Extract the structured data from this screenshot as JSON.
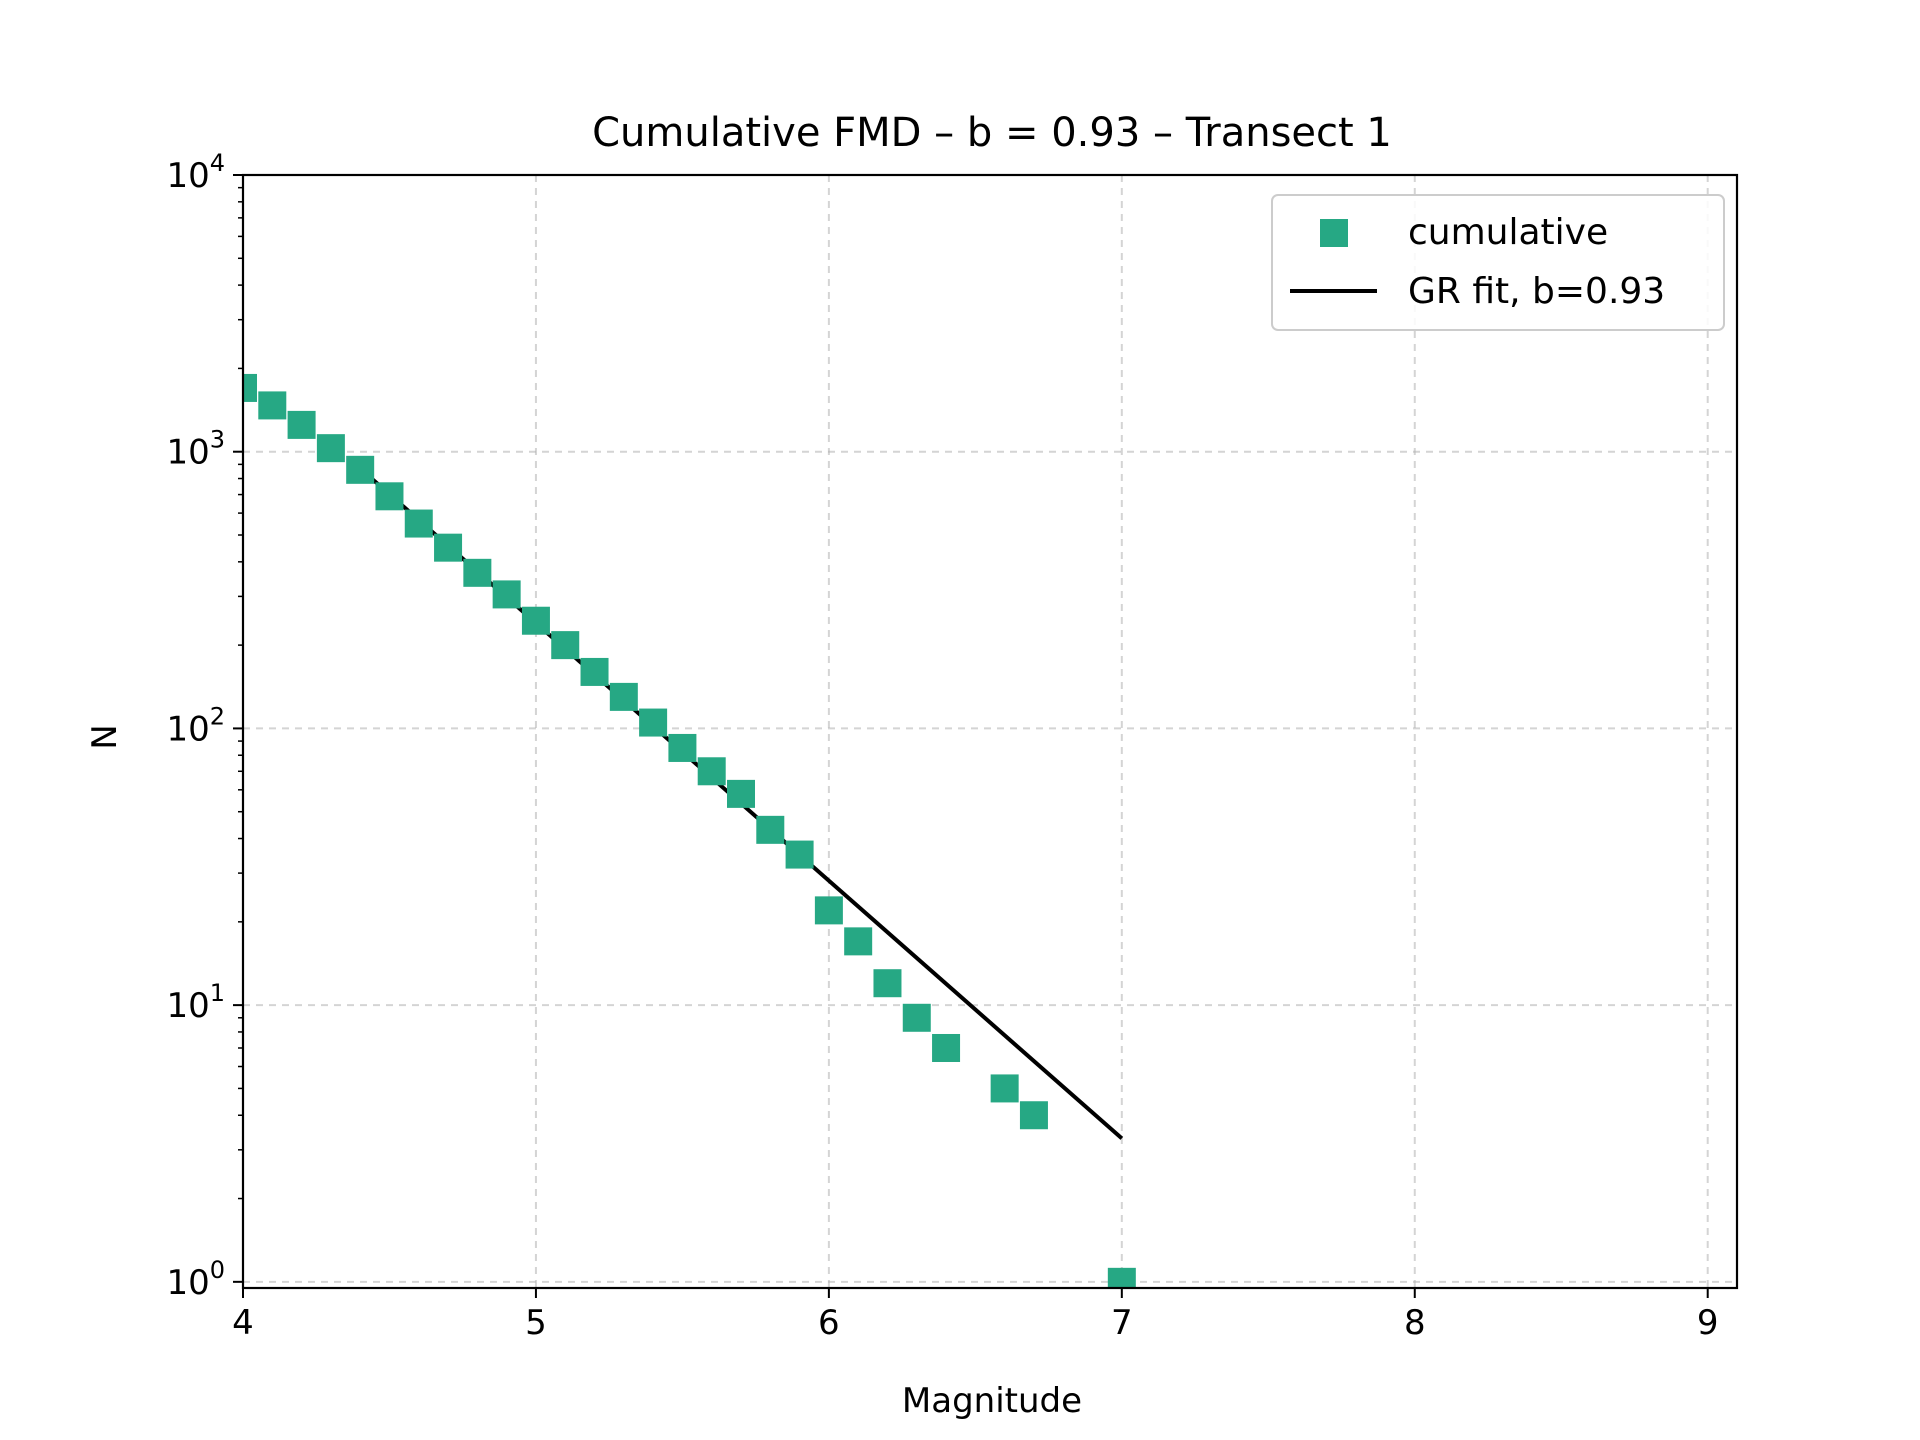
{
  "chart_data": {
    "type": "scatter",
    "title": "Cumulative FMD – b = 0.93 – Transect 1",
    "xlabel": "Magnitude",
    "ylabel": "N",
    "xlim": [
      4,
      9.1
    ],
    "ylim": [
      0.95,
      10000
    ],
    "yscale": "log",
    "grid": true,
    "legend_position": "top-right",
    "x_ticks": [
      "4",
      "5",
      "6",
      "7",
      "8",
      "9"
    ],
    "y_ticks": [
      {
        "base": "10",
        "exp": "0",
        "value": 1
      },
      {
        "base": "10",
        "exp": "1",
        "value": 10
      },
      {
        "base": "10",
        "exp": "2",
        "value": 100
      },
      {
        "base": "10",
        "exp": "3",
        "value": 1000
      },
      {
        "base": "10",
        "exp": "4",
        "value": 10000
      }
    ],
    "series": [
      {
        "name": "cumulative",
        "kind": "scatter",
        "marker": "square",
        "color": "#26a884",
        "points": [
          {
            "x": 4.0,
            "y": 1700
          },
          {
            "x": 4.1,
            "y": 1470
          },
          {
            "x": 4.2,
            "y": 1250
          },
          {
            "x": 4.3,
            "y": 1030
          },
          {
            "x": 4.4,
            "y": 860
          },
          {
            "x": 4.5,
            "y": 690
          },
          {
            "x": 4.6,
            "y": 550
          },
          {
            "x": 4.7,
            "y": 450
          },
          {
            "x": 4.8,
            "y": 365
          },
          {
            "x": 4.9,
            "y": 305
          },
          {
            "x": 5.0,
            "y": 245
          },
          {
            "x": 5.1,
            "y": 200
          },
          {
            "x": 5.2,
            "y": 160
          },
          {
            "x": 5.3,
            "y": 130
          },
          {
            "x": 5.4,
            "y": 105
          },
          {
            "x": 5.5,
            "y": 85
          },
          {
            "x": 5.6,
            "y": 70
          },
          {
            "x": 5.7,
            "y": 58
          },
          {
            "x": 5.8,
            "y": 43
          },
          {
            "x": 5.9,
            "y": 35
          },
          {
            "x": 6.0,
            "y": 22
          },
          {
            "x": 6.1,
            "y": 17
          },
          {
            "x": 6.2,
            "y": 12
          },
          {
            "x": 6.3,
            "y": 9
          },
          {
            "x": 6.4,
            "y": 7
          },
          {
            "x": 6.6,
            "y": 5
          },
          {
            "x": 6.7,
            "y": 4
          },
          {
            "x": 7.0,
            "y": 1
          }
        ]
      },
      {
        "name": "GR fit, b=0.93",
        "kind": "line",
        "color": "#000000",
        "points": [
          {
            "x": 4.4,
            "y": 870
          },
          {
            "x": 7.0,
            "y": 3.3
          }
        ]
      }
    ]
  }
}
